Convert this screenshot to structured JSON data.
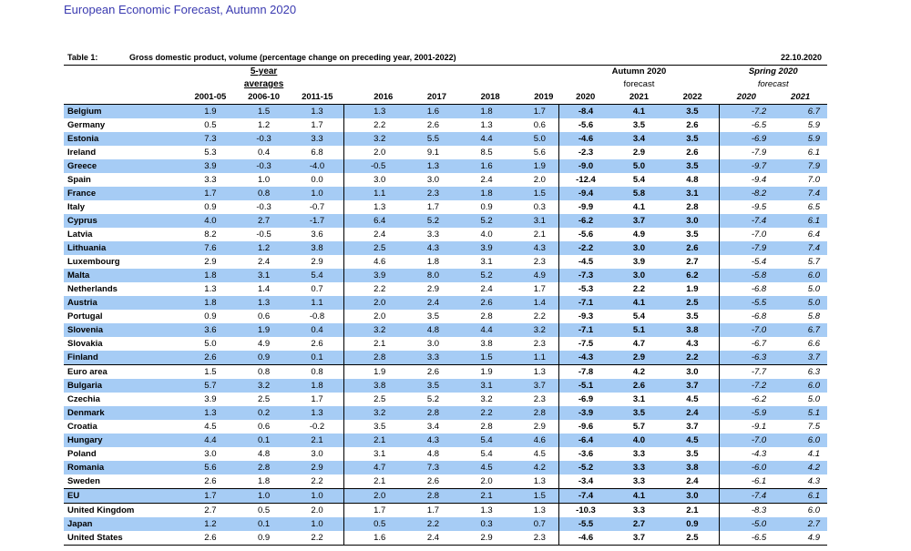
{
  "document": {
    "header": "European Economic Forecast, Autumn 2020",
    "table_label": "Table 1:",
    "table_title": "Gross domestic product, volume (percentage change on preceding year, 2001-2022)",
    "date": "22.10.2020"
  },
  "headers": {
    "avg_line1": "5-year",
    "avg_line2": "averages",
    "autumn_line1": "Autumn 2020",
    "autumn_line2": "forecast",
    "spring_line1": "Spring 2020",
    "spring_line2": "forecast",
    "years": [
      "2001-05",
      "2006-10",
      "2011-15",
      "2016",
      "2017",
      "2018",
      "2019",
      "2020",
      "2021",
      "2022",
      "2020",
      "2021"
    ]
  },
  "rows": [
    {
      "name": "Belgium",
      "v": [
        "1.9",
        "1.5",
        "1.3",
        "1.3",
        "1.6",
        "1.8",
        "1.7",
        "-8.4",
        "4.1",
        "3.5",
        "-7.2",
        "6.7"
      ]
    },
    {
      "name": "Germany",
      "v": [
        "0.5",
        "1.2",
        "1.7",
        "2.2",
        "2.6",
        "1.3",
        "0.6",
        "-5.6",
        "3.5",
        "2.6",
        "-6.5",
        "5.9"
      ]
    },
    {
      "name": "Estonia",
      "v": [
        "7.3",
        "-0.3",
        "3.3",
        "3.2",
        "5.5",
        "4.4",
        "5.0",
        "-4.6",
        "3.4",
        "3.5",
        "-6.9",
        "5.9"
      ]
    },
    {
      "name": "Ireland",
      "v": [
        "5.3",
        "0.4",
        "6.8",
        "2.0",
        "9.1",
        "8.5",
        "5.6",
        "-2.3",
        "2.9",
        "2.6",
        "-7.9",
        "6.1"
      ]
    },
    {
      "name": "Greece",
      "v": [
        "3.9",
        "-0.3",
        "-4.0",
        "-0.5",
        "1.3",
        "1.6",
        "1.9",
        "-9.0",
        "5.0",
        "3.5",
        "-9.7",
        "7.9"
      ]
    },
    {
      "name": "Spain",
      "v": [
        "3.3",
        "1.0",
        "0.0",
        "3.0",
        "3.0",
        "2.4",
        "2.0",
        "-12.4",
        "5.4",
        "4.8",
        "-9.4",
        "7.0"
      ]
    },
    {
      "name": "France",
      "v": [
        "1.7",
        "0.8",
        "1.0",
        "1.1",
        "2.3",
        "1.8",
        "1.5",
        "-9.4",
        "5.8",
        "3.1",
        "-8.2",
        "7.4"
      ]
    },
    {
      "name": "Italy",
      "v": [
        "0.9",
        "-0.3",
        "-0.7",
        "1.3",
        "1.7",
        "0.9",
        "0.3",
        "-9.9",
        "4.1",
        "2.8",
        "-9.5",
        "6.5"
      ]
    },
    {
      "name": "Cyprus",
      "v": [
        "4.0",
        "2.7",
        "-1.7",
        "6.4",
        "5.2",
        "5.2",
        "3.1",
        "-6.2",
        "3.7",
        "3.0",
        "-7.4",
        "6.1"
      ]
    },
    {
      "name": "Latvia",
      "v": [
        "8.2",
        "-0.5",
        "3.6",
        "2.4",
        "3.3",
        "4.0",
        "2.1",
        "-5.6",
        "4.9",
        "3.5",
        "-7.0",
        "6.4"
      ]
    },
    {
      "name": "Lithuania",
      "v": [
        "7.6",
        "1.2",
        "3.8",
        "2.5",
        "4.3",
        "3.9",
        "4.3",
        "-2.2",
        "3.0",
        "2.6",
        "-7.9",
        "7.4"
      ]
    },
    {
      "name": "Luxembourg",
      "v": [
        "2.9",
        "2.4",
        "2.9",
        "4.6",
        "1.8",
        "3.1",
        "2.3",
        "-4.5",
        "3.9",
        "2.7",
        "-5.4",
        "5.7"
      ]
    },
    {
      "name": "Malta",
      "v": [
        "1.8",
        "3.1",
        "5.4",
        "3.9",
        "8.0",
        "5.2",
        "4.9",
        "-7.3",
        "3.0",
        "6.2",
        "-5.8",
        "6.0"
      ]
    },
    {
      "name": "Netherlands",
      "v": [
        "1.3",
        "1.4",
        "0.7",
        "2.2",
        "2.9",
        "2.4",
        "1.7",
        "-5.3",
        "2.2",
        "1.9",
        "-6.8",
        "5.0"
      ]
    },
    {
      "name": "Austria",
      "v": [
        "1.8",
        "1.3",
        "1.1",
        "2.0",
        "2.4",
        "2.6",
        "1.4",
        "-7.1",
        "4.1",
        "2.5",
        "-5.5",
        "5.0"
      ]
    },
    {
      "name": "Portugal",
      "v": [
        "0.9",
        "0.6",
        "-0.8",
        "2.0",
        "3.5",
        "2.8",
        "2.2",
        "-9.3",
        "5.4",
        "3.5",
        "-6.8",
        "5.8"
      ]
    },
    {
      "name": "Slovenia",
      "v": [
        "3.6",
        "1.9",
        "0.4",
        "3.2",
        "4.8",
        "4.4",
        "3.2",
        "-7.1",
        "5.1",
        "3.8",
        "-7.0",
        "6.7"
      ]
    },
    {
      "name": "Slovakia",
      "v": [
        "5.0",
        "4.9",
        "2.6",
        "2.1",
        "3.0",
        "3.8",
        "2.3",
        "-7.5",
        "4.7",
        "4.3",
        "-6.7",
        "6.6"
      ]
    },
    {
      "name": "Finland",
      "v": [
        "2.6",
        "0.9",
        "0.1",
        "2.8",
        "3.3",
        "1.5",
        "1.1",
        "-4.3",
        "2.9",
        "2.2",
        "-6.3",
        "3.7"
      ]
    },
    {
      "name": "Euro area",
      "v": [
        "1.5",
        "0.8",
        "0.8",
        "1.9",
        "2.6",
        "1.9",
        "1.3",
        "-7.8",
        "4.2",
        "3.0",
        "-7.7",
        "6.3"
      ]
    },
    {
      "name": "Bulgaria",
      "v": [
        "5.7",
        "3.2",
        "1.8",
        "3.8",
        "3.5",
        "3.1",
        "3.7",
        "-5.1",
        "2.6",
        "3.7",
        "-7.2",
        "6.0"
      ]
    },
    {
      "name": "Czechia",
      "v": [
        "3.9",
        "2.5",
        "1.7",
        "2.5",
        "5.2",
        "3.2",
        "2.3",
        "-6.9",
        "3.1",
        "4.5",
        "-6.2",
        "5.0"
      ]
    },
    {
      "name": "Denmark",
      "v": [
        "1.3",
        "0.2",
        "1.3",
        "3.2",
        "2.8",
        "2.2",
        "2.8",
        "-3.9",
        "3.5",
        "2.4",
        "-5.9",
        "5.1"
      ]
    },
    {
      "name": "Croatia",
      "v": [
        "4.5",
        "0.6",
        "-0.2",
        "3.5",
        "3.4",
        "2.8",
        "2.9",
        "-9.6",
        "5.7",
        "3.7",
        "-9.1",
        "7.5"
      ]
    },
    {
      "name": "Hungary",
      "v": [
        "4.4",
        "0.1",
        "2.1",
        "2.1",
        "4.3",
        "5.4",
        "4.6",
        "-6.4",
        "4.0",
        "4.5",
        "-7.0",
        "6.0"
      ]
    },
    {
      "name": "Poland",
      "v": [
        "3.0",
        "4.8",
        "3.0",
        "3.1",
        "4.8",
        "5.4",
        "4.5",
        "-3.6",
        "3.3",
        "3.5",
        "-4.3",
        "4.1"
      ]
    },
    {
      "name": "Romania",
      "v": [
        "5.6",
        "2.8",
        "2.9",
        "4.7",
        "7.3",
        "4.5",
        "4.2",
        "-5.2",
        "3.3",
        "3.8",
        "-6.0",
        "4.2"
      ]
    },
    {
      "name": "Sweden",
      "v": [
        "2.6",
        "1.8",
        "2.2",
        "2.1",
        "2.6",
        "2.0",
        "1.3",
        "-3.4",
        "3.3",
        "2.4",
        "-6.1",
        "4.3"
      ]
    },
    {
      "name": "EU",
      "v": [
        "1.7",
        "1.0",
        "1.0",
        "2.0",
        "2.8",
        "2.1",
        "1.5",
        "-7.4",
        "4.1",
        "3.0",
        "-7.4",
        "6.1"
      ]
    },
    {
      "name": "United Kingdom",
      "v": [
        "2.7",
        "0.5",
        "2.0",
        "1.7",
        "1.7",
        "1.3",
        "1.3",
        "-10.3",
        "3.3",
        "2.1",
        "-8.3",
        "6.0"
      ]
    },
    {
      "name": "Japan",
      "v": [
        "1.2",
        "0.1",
        "1.0",
        "0.5",
        "2.2",
        "0.3",
        "0.7",
        "-5.5",
        "2.7",
        "0.9",
        "-5.0",
        "2.7"
      ]
    },
    {
      "name": "United States",
      "v": [
        "2.6",
        "0.9",
        "2.2",
        "1.6",
        "2.4",
        "2.9",
        "2.3",
        "-4.6",
        "3.7",
        "2.5",
        "-6.5",
        "4.9"
      ]
    }
  ],
  "row_highlight": "#a6ccf5",
  "header_color": "#3a3ab0"
}
